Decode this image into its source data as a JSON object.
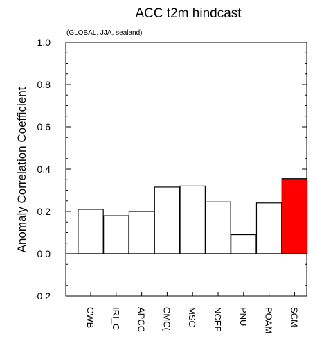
{
  "chart_data": {
    "type": "bar",
    "title": "ACC t2m hindcast",
    "subtitle": "(GLOBAL, JJA, sealand)",
    "ylabel": "Anomaly Correlation Coefficient",
    "xlabel": "",
    "ylim": [
      -0.2,
      1.0
    ],
    "yticks": [
      "-0.2",
      "0.0",
      "0.2",
      "0.4",
      "0.6",
      "0.8",
      "1.0"
    ],
    "categories": [
      "CWB",
      "IRI_C",
      "APCC",
      "CMCC",
      "MSC",
      "NCEP",
      "PNU",
      "POAMA",
      "SCM"
    ],
    "tick_labels": [
      "CWB",
      "IRI_C",
      "APCC",
      "CMC(",
      "MSC",
      "NCEF",
      "PNU",
      "POAM",
      "SCM"
    ],
    "values": [
      0.21,
      0.18,
      0.2,
      0.315,
      0.32,
      0.245,
      0.09,
      0.24,
      0.355
    ],
    "colors": [
      "#ffffff",
      "#ffffff",
      "#ffffff",
      "#ffffff",
      "#ffffff",
      "#ffffff",
      "#ffffff",
      "#ffffff",
      "#ff0000"
    ],
    "grid": false,
    "zero_line": true
  }
}
